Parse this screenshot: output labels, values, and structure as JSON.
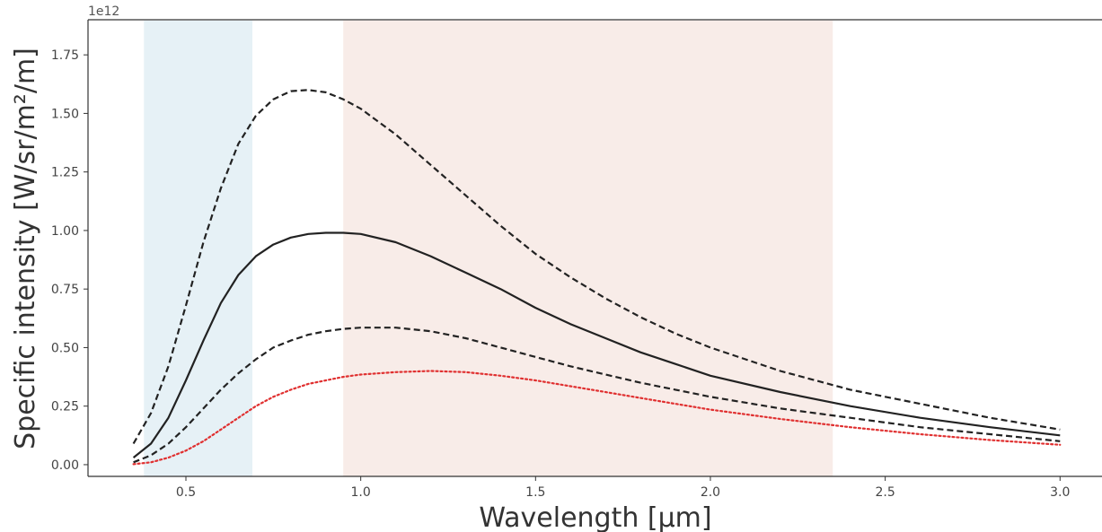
{
  "chart_data": {
    "type": "line",
    "xlabel": "Wavelength [μm]",
    "ylabel": "Specific intensity [W/sr/m²/m]",
    "y_offset_label": "1e12",
    "xlim": [
      0.22,
      3.12
    ],
    "ylim": [
      -0.05,
      1.9
    ],
    "x_ticks": [
      0.5,
      1.0,
      1.5,
      2.0,
      2.5,
      3.0
    ],
    "x_tick_labels": [
      "0.5",
      "1.0",
      "1.5",
      "2.0",
      "2.5",
      "3.0"
    ],
    "y_ticks": [
      0.0,
      0.25,
      0.5,
      0.75,
      1.0,
      1.25,
      1.5,
      1.75
    ],
    "y_tick_labels": [
      "0.00",
      "0.25",
      "0.50",
      "0.75",
      "1.00",
      "1.25",
      "1.50",
      "1.75"
    ],
    "grid": false,
    "shaded_bands": [
      {
        "x_range": [
          0.38,
          0.69
        ],
        "color": "#e6f1f6"
      },
      {
        "x_range": [
          0.95,
          2.35
        ],
        "color": "#f8ece8"
      }
    ],
    "x": [
      0.35,
      0.4,
      0.45,
      0.5,
      0.55,
      0.6,
      0.65,
      0.7,
      0.75,
      0.8,
      0.85,
      0.9,
      0.95,
      1.0,
      1.1,
      1.2,
      1.3,
      1.4,
      1.5,
      1.6,
      1.7,
      1.8,
      1.9,
      2.0,
      2.2,
      2.4,
      2.6,
      2.8,
      3.0
    ],
    "series": [
      {
        "style": "dashed",
        "color": "#222222",
        "values": [
          0.09,
          0.22,
          0.42,
          0.68,
          0.95,
          1.18,
          1.37,
          1.49,
          1.56,
          1.595,
          1.6,
          1.59,
          1.56,
          1.52,
          1.41,
          1.28,
          1.15,
          1.02,
          0.9,
          0.8,
          0.71,
          0.63,
          0.56,
          0.5,
          0.4,
          0.32,
          0.26,
          0.2,
          0.15
        ]
      },
      {
        "style": "solid",
        "color": "#222222",
        "values": [
          0.03,
          0.09,
          0.2,
          0.36,
          0.53,
          0.69,
          0.81,
          0.89,
          0.94,
          0.97,
          0.985,
          0.99,
          0.99,
          0.985,
          0.95,
          0.89,
          0.82,
          0.75,
          0.67,
          0.6,
          0.54,
          0.48,
          0.43,
          0.38,
          0.31,
          0.25,
          0.2,
          0.16,
          0.125
        ]
      },
      {
        "style": "dashed",
        "color": "#222222",
        "values": [
          0.01,
          0.04,
          0.09,
          0.16,
          0.24,
          0.32,
          0.39,
          0.45,
          0.5,
          0.53,
          0.555,
          0.57,
          0.58,
          0.585,
          0.585,
          0.57,
          0.54,
          0.5,
          0.46,
          0.42,
          0.385,
          0.35,
          0.32,
          0.29,
          0.24,
          0.2,
          0.16,
          0.13,
          0.1
        ]
      },
      {
        "style": "dotted",
        "color": "#e03030",
        "values": [
          0.002,
          0.01,
          0.03,
          0.06,
          0.1,
          0.15,
          0.2,
          0.25,
          0.29,
          0.32,
          0.345,
          0.36,
          0.375,
          0.385,
          0.395,
          0.4,
          0.395,
          0.38,
          0.36,
          0.335,
          0.31,
          0.285,
          0.26,
          0.235,
          0.195,
          0.16,
          0.13,
          0.105,
          0.085
        ]
      }
    ]
  }
}
